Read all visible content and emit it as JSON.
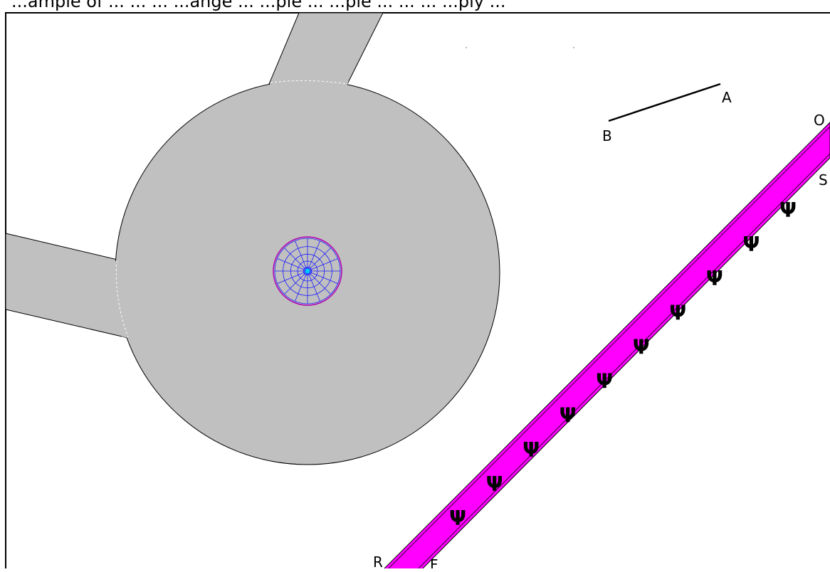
{
  "header_text": "...ample of ... ... ... ...ange ... ...ple ... ...ple ... ... ... ...ply ...",
  "colors": {
    "region_fill": "#c0c0c0",
    "region_stroke": "#000000",
    "channel_fill": "#ff00ff",
    "mesh_stroke": "#1a1aff",
    "mesh_outline": "#b000b0",
    "mesh_center": "#00ccff",
    "boundary_dashed": "#ffffff"
  },
  "points": {
    "A": "A",
    "B": "B",
    "O": "O",
    "S": "S",
    "R": "R",
    "F": "F"
  },
  "channel_symbol": "Ψ",
  "mesh": {
    "rings": 5,
    "spokes": 16
  }
}
